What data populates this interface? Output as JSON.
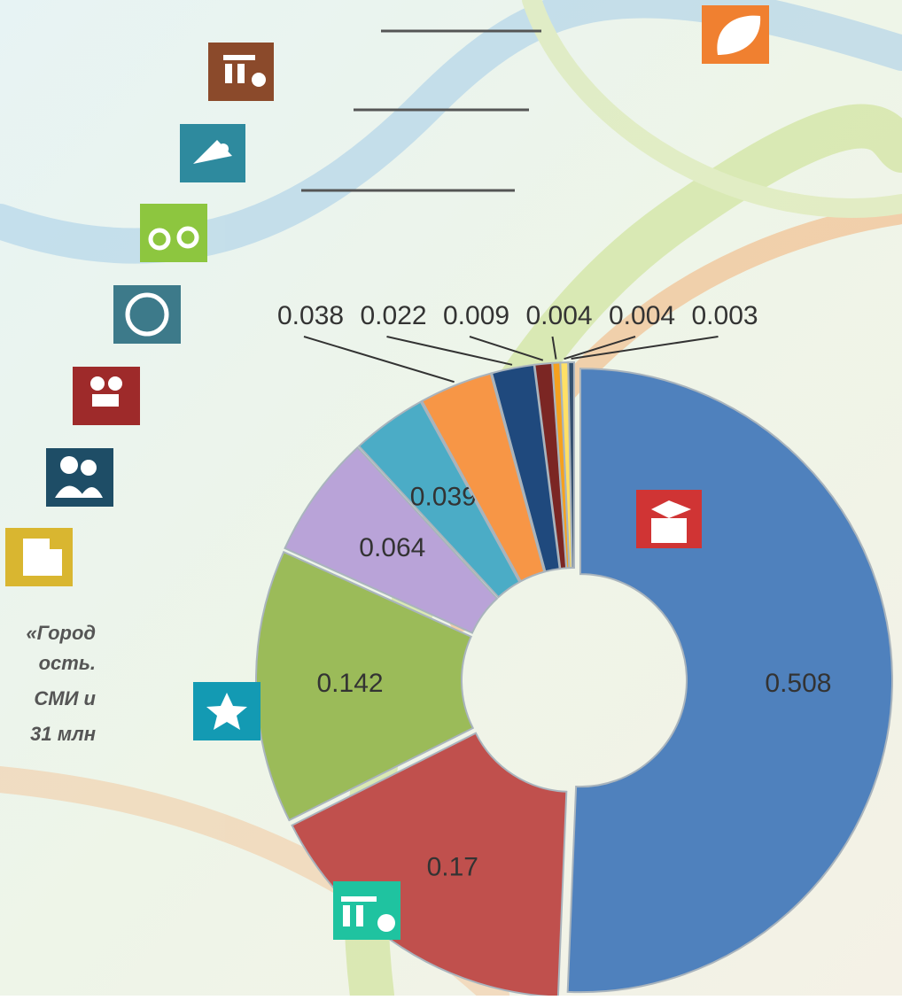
{
  "chart_data": {
    "type": "donut",
    "values": [
      0.508,
      0.17,
      0.142,
      0.064,
      0.039,
      0.038,
      0.022,
      0.009,
      0.004,
      0.004,
      0.003
    ],
    "colors": [
      "#4f81bd",
      "#c0504d",
      "#9bbb59",
      "#b9a3d8",
      "#4bacc6",
      "#f79646",
      "#1f497d",
      "#7b2623",
      "#f5a11f",
      "#ffe066",
      "#34506e"
    ]
  },
  "caption_lines": [
    "«Город",
    "ость.",
    "СМИ   и",
    "31  млн"
  ]
}
